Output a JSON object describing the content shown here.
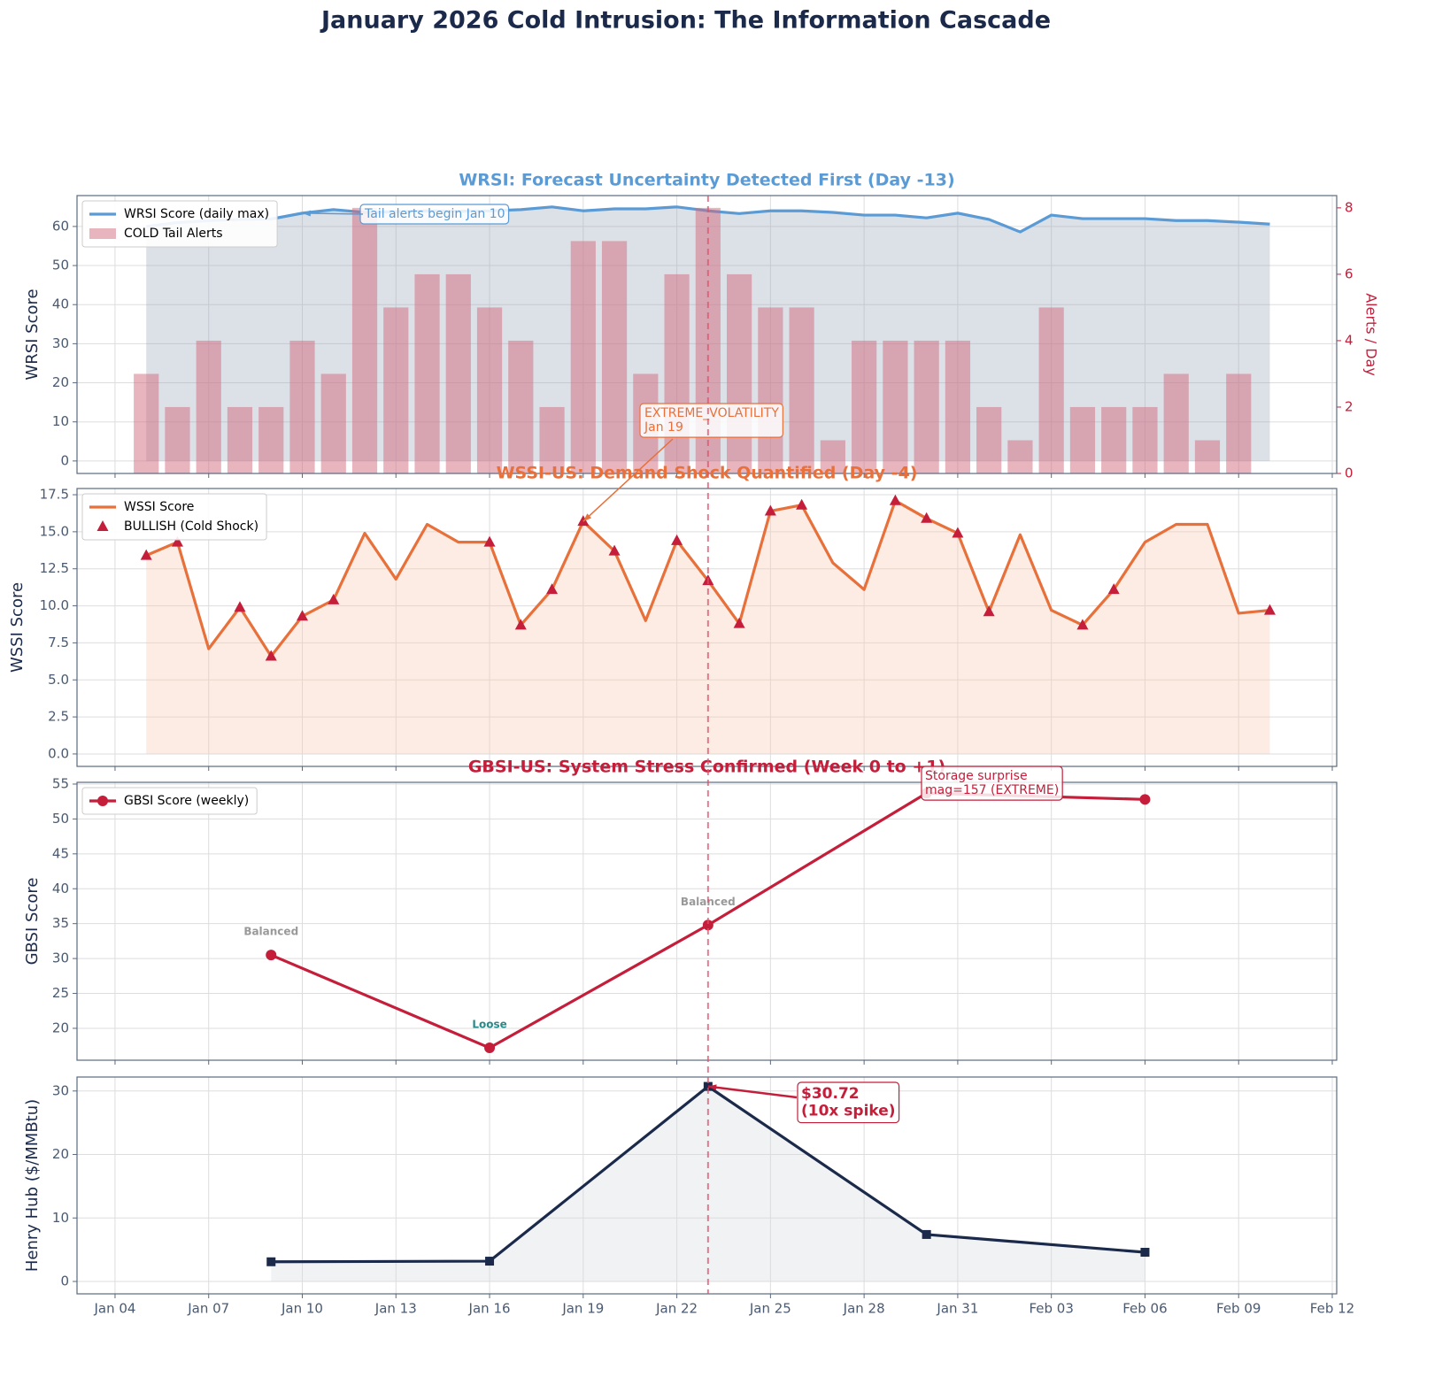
{
  "title": "January 2026 Cold Intrusion: The Information Cascade",
  "event_date": "Jan 23",
  "event_color": "#e0506a",
  "chart_data": [
    {
      "type": "combo",
      "title": "WRSI: Forecast Uncertainty Detected First (Day -13)",
      "title_color": "#5b9bd5",
      "ylabel": "WRSI Score",
      "y2label": "Alerts / Day",
      "y2color": "#c41e3a",
      "x": [
        "Jan 05",
        "Jan 06",
        "Jan 07",
        "Jan 08",
        "Jan 09",
        "Jan 10",
        "Jan 11",
        "Jan 12",
        "Jan 13",
        "Jan 14",
        "Jan 15",
        "Jan 16",
        "Jan 17",
        "Jan 18",
        "Jan 19",
        "Jan 20",
        "Jan 21",
        "Jan 22",
        "Jan 23",
        "Jan 24",
        "Jan 25",
        "Jan 26",
        "Jan 27",
        "Jan 28",
        "Jan 29",
        "Jan 30",
        "Jan 31",
        "Feb 01",
        "Feb 02",
        "Feb 03",
        "Feb 04",
        "Feb 05",
        "Feb 06",
        "Feb 07",
        "Feb 08",
        "Feb 09",
        "Feb 10"
      ],
      "series": [
        {
          "name": "WRSI Score (daily max)",
          "type": "line",
          "color": "#5b9bd5",
          "fill": "#9aa6bb",
          "values": [
            60.0,
            61.0,
            61.5,
            61.8,
            61.9,
            63.4,
            64.3,
            63.6,
            63.8,
            64.0,
            63.9,
            64.0,
            64.3,
            65.0,
            64.0,
            64.5,
            64.5,
            65.0,
            64.0,
            63.3,
            64.0,
            64.0,
            63.6,
            62.9,
            62.9,
            62.2,
            63.4,
            61.8,
            58.6,
            62.9,
            62.0,
            62.0,
            62.0,
            61.5,
            61.5,
            61.1,
            60.6
          ]
        },
        {
          "name": "COLD Tail Alerts",
          "type": "bar",
          "axis": "y2",
          "color": "#d26a7e",
          "values": [
            3,
            2,
            4,
            2,
            2,
            4,
            3,
            8,
            5,
            6,
            6,
            5,
            4,
            2,
            7,
            7,
            3,
            6,
            8,
            6,
            5,
            5,
            1,
            4,
            4,
            4,
            4,
            2,
            1,
            5,
            2,
            2,
            2,
            3,
            1,
            3,
            0
          ]
        }
      ],
      "ylim": [
        -3.2,
        67.9
      ],
      "yticks": [
        0,
        10,
        20,
        30,
        40,
        50,
        60
      ],
      "y2lim": [
        0,
        8.37
      ],
      "y2ticks": [
        0,
        2,
        4,
        6,
        8
      ],
      "annotation": [
        "Tail alerts begin Jan 10"
      ]
    },
    {
      "type": "line",
      "title": "WSSI-US: Demand Shock Quantified (Day -4)",
      "title_color": "#e8703a",
      "ylabel": "WSSI Score",
      "x": [
        "Jan 05",
        "Jan 06",
        "Jan 07",
        "Jan 08",
        "Jan 09",
        "Jan 10",
        "Jan 11",
        "Jan 12",
        "Jan 13",
        "Jan 14",
        "Jan 15",
        "Jan 16",
        "Jan 17",
        "Jan 18",
        "Jan 19",
        "Jan 20",
        "Jan 21",
        "Jan 22",
        "Jan 23",
        "Jan 24",
        "Jan 25",
        "Jan 26",
        "Jan 27",
        "Jan 28",
        "Jan 29",
        "Jan 30",
        "Jan 31",
        "Feb 01",
        "Feb 02",
        "Feb 03",
        "Feb 04",
        "Feb 05",
        "Feb 06",
        "Feb 07",
        "Feb 08",
        "Feb 09",
        "Feb 10"
      ],
      "series": [
        {
          "name": "WSSI Score",
          "type": "line",
          "color": "#e8703a",
          "fill": "#f6c9b0",
          "values": [
            13.4,
            14.3,
            7.1,
            9.9,
            6.6,
            9.3,
            10.4,
            14.9,
            11.8,
            15.5,
            14.3,
            14.3,
            8.7,
            11.1,
            15.7,
            13.7,
            9.0,
            14.4,
            11.7,
            8.8,
            16.4,
            16.8,
            12.9,
            11.1,
            17.1,
            15.9,
            14.9,
            9.6,
            14.8,
            9.7,
            8.7,
            11.1,
            14.3,
            15.5,
            15.5,
            9.5,
            9.7
          ]
        },
        {
          "name": "BULLISH (Cold Shock)",
          "type": "scatter",
          "marker": "triangle",
          "color": "#c41e3a",
          "values": [
            13.4,
            14.3,
            null,
            9.9,
            6.6,
            9.3,
            10.4,
            null,
            null,
            null,
            null,
            14.3,
            8.7,
            11.1,
            15.7,
            13.7,
            null,
            14.4,
            11.7,
            8.8,
            16.4,
            16.8,
            null,
            null,
            17.1,
            15.9,
            14.9,
            9.6,
            null,
            null,
            8.7,
            11.1,
            null,
            null,
            null,
            null,
            9.7
          ]
        }
      ],
      "ylim": [
        -0.84,
        17.92
      ],
      "yticks": [
        {
          "value": 0,
          "label": "0.0"
        },
        2.5,
        {
          "value": 5,
          "label": "5.0"
        },
        7.5,
        {
          "value": 10,
          "label": "10.0"
        },
        12.5,
        {
          "value": 15,
          "label": "15.0"
        },
        17.5
      ],
      "annotation": [
        "EXTREME_VOLATILITY",
        "Jan 19"
      ]
    },
    {
      "type": "line",
      "title": "GBSI-US: System Stress Confirmed (Week 0 to +1)",
      "title_color": "#c41e3a",
      "ylabel": "GBSI Score",
      "x": [
        "Jan 09",
        "Jan 16",
        "Jan 23",
        "Jan 30",
        "Feb 06"
      ],
      "series": [
        {
          "name": "GBSI Score (weekly)",
          "type": "line",
          "marker": "circle",
          "color": "#c41e3a",
          "values": [
            30.5,
            17.2,
            34.8,
            53.7,
            52.8
          ],
          "point_labels": [
            "Balanced",
            "Loose",
            "Balanced",
            null,
            null
          ],
          "point_label_colors": [
            "#999999",
            "#2a8a8a",
            "#999999",
            null,
            null
          ]
        }
      ],
      "ylim": [
        15.43,
        55.25
      ],
      "yticks": [
        20,
        25,
        30,
        35,
        40,
        45,
        50,
        55
      ],
      "annotation": [
        "Storage surprise",
        "mag=157 (EXTREME)"
      ]
    },
    {
      "type": "line",
      "ylabel": "Henry Hub ($/MMBtu)",
      "x": [
        "Jan 09",
        "Jan 16",
        "Jan 23",
        "Jan 30",
        "Feb 06"
      ],
      "series": [
        {
          "type": "line",
          "marker": "square",
          "color": "#1b2a4a",
          "fill": "#d8dbe0",
          "values": [
            3.1,
            3.2,
            30.72,
            7.4,
            4.6
          ]
        }
      ],
      "ylim": [
        -1.95,
        32.2
      ],
      "yticks": [
        0,
        10,
        20,
        30
      ],
      "xlim": [
        "Jan 03",
        "Feb 12"
      ],
      "xticks": [
        "Jan 04",
        "Jan 07",
        "Jan 10",
        "Jan 13",
        "Jan 16",
        "Jan 19",
        "Jan 22",
        "Jan 25",
        "Jan 28",
        "Jan 31",
        "Feb 03",
        "Feb 06",
        "Feb 09",
        "Feb 12"
      ],
      "annotation": [
        "$30.72",
        "(10x spike)"
      ]
    }
  ]
}
